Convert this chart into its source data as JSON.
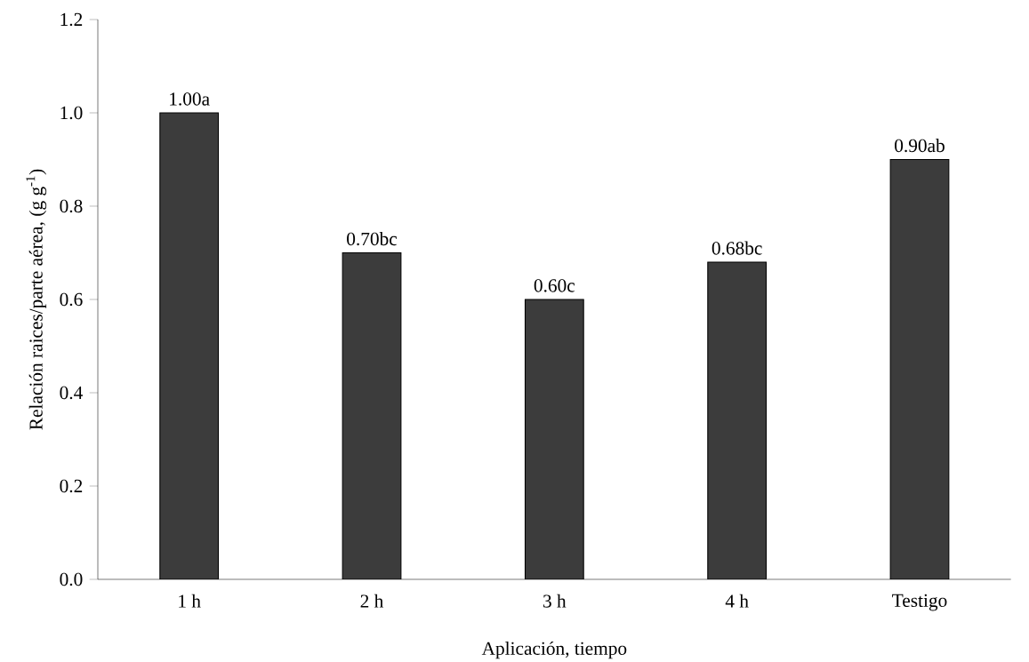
{
  "chart_data": {
    "type": "bar",
    "xlabel": "Aplicación, tiempo",
    "ylabel": "Relación raices/parte aérea, (g g$^{-1}$)",
    "categories": [
      "1 h",
      "2 h",
      "3 h",
      "4 h",
      "Testigo"
    ],
    "values": [
      1.0,
      0.7,
      0.6,
      0.68,
      0.9
    ],
    "value_labels": [
      "1.00a",
      "0.70bc",
      "0.60c",
      "0.68bc",
      "0.90ab"
    ],
    "color": "#3c3c3c",
    "ylim": [
      0,
      1.2
    ],
    "yticks": [
      {
        "value": 0,
        "label": "0.0"
      },
      {
        "value": 0.2,
        "label": "0.2"
      },
      {
        "value": 0.4,
        "label": "0.4"
      },
      {
        "value": 0.6,
        "label": "0.6"
      },
      {
        "value": 0.8,
        "label": "0.8"
      },
      {
        "value": 1.0,
        "label": "1.0"
      },
      {
        "value": 1.2,
        "label": "1.2"
      }
    ],
    "grid": false
  }
}
